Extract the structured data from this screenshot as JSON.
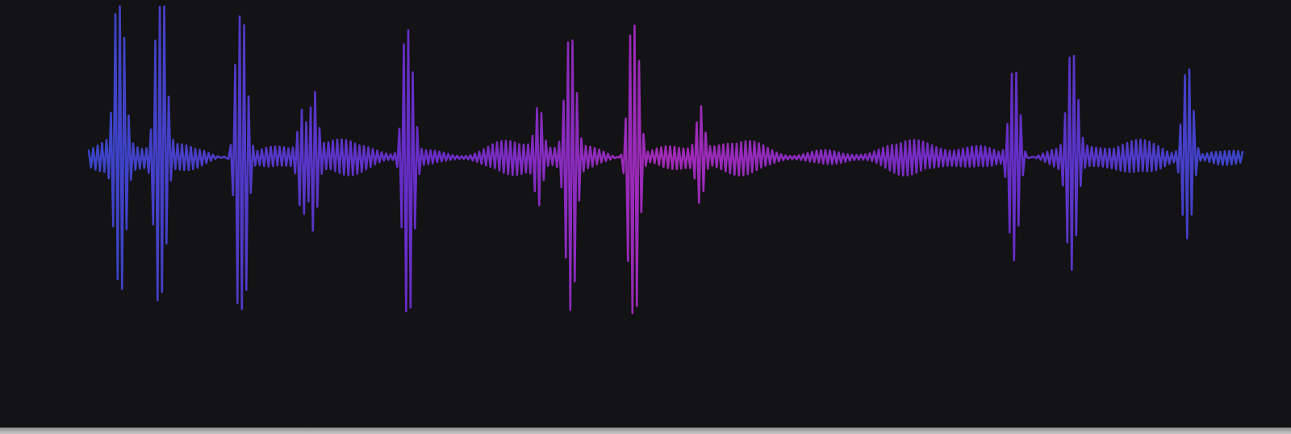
{
  "waveform": {
    "colors": {
      "background": "#131214",
      "gradient": [
        "#3a45c8",
        "#6a2cc8",
        "#a22ab6",
        "#6a2cc8",
        "#3a45c8"
      ]
    },
    "peaks": [
      {
        "t": 0.025,
        "a": 0.95
      },
      {
        "t": 0.03,
        "a": 0.55
      },
      {
        "t": 0.06,
        "a": 0.95
      },
      {
        "t": 0.065,
        "a": 0.75
      },
      {
        "t": 0.13,
        "a": 1.0
      },
      {
        "t": 0.135,
        "a": 0.85
      },
      {
        "t": 0.185,
        "a": 0.35
      },
      {
        "t": 0.195,
        "a": 0.45
      },
      {
        "t": 0.275,
        "a": 0.95
      },
      {
        "t": 0.28,
        "a": 0.55
      },
      {
        "t": 0.39,
        "a": 0.3
      },
      {
        "t": 0.415,
        "a": 0.6
      },
      {
        "t": 0.42,
        "a": 0.7
      },
      {
        "t": 0.47,
        "a": 0.95
      },
      {
        "t": 0.475,
        "a": 0.75
      },
      {
        "t": 0.53,
        "a": 0.3
      },
      {
        "t": 0.8,
        "a": 0.55
      },
      {
        "t": 0.805,
        "a": 0.4
      },
      {
        "t": 0.85,
        "a": 0.55
      },
      {
        "t": 0.855,
        "a": 0.4
      },
      {
        "t": 0.95,
        "a": 0.45
      },
      {
        "t": 0.955,
        "a": 0.4
      }
    ]
  }
}
